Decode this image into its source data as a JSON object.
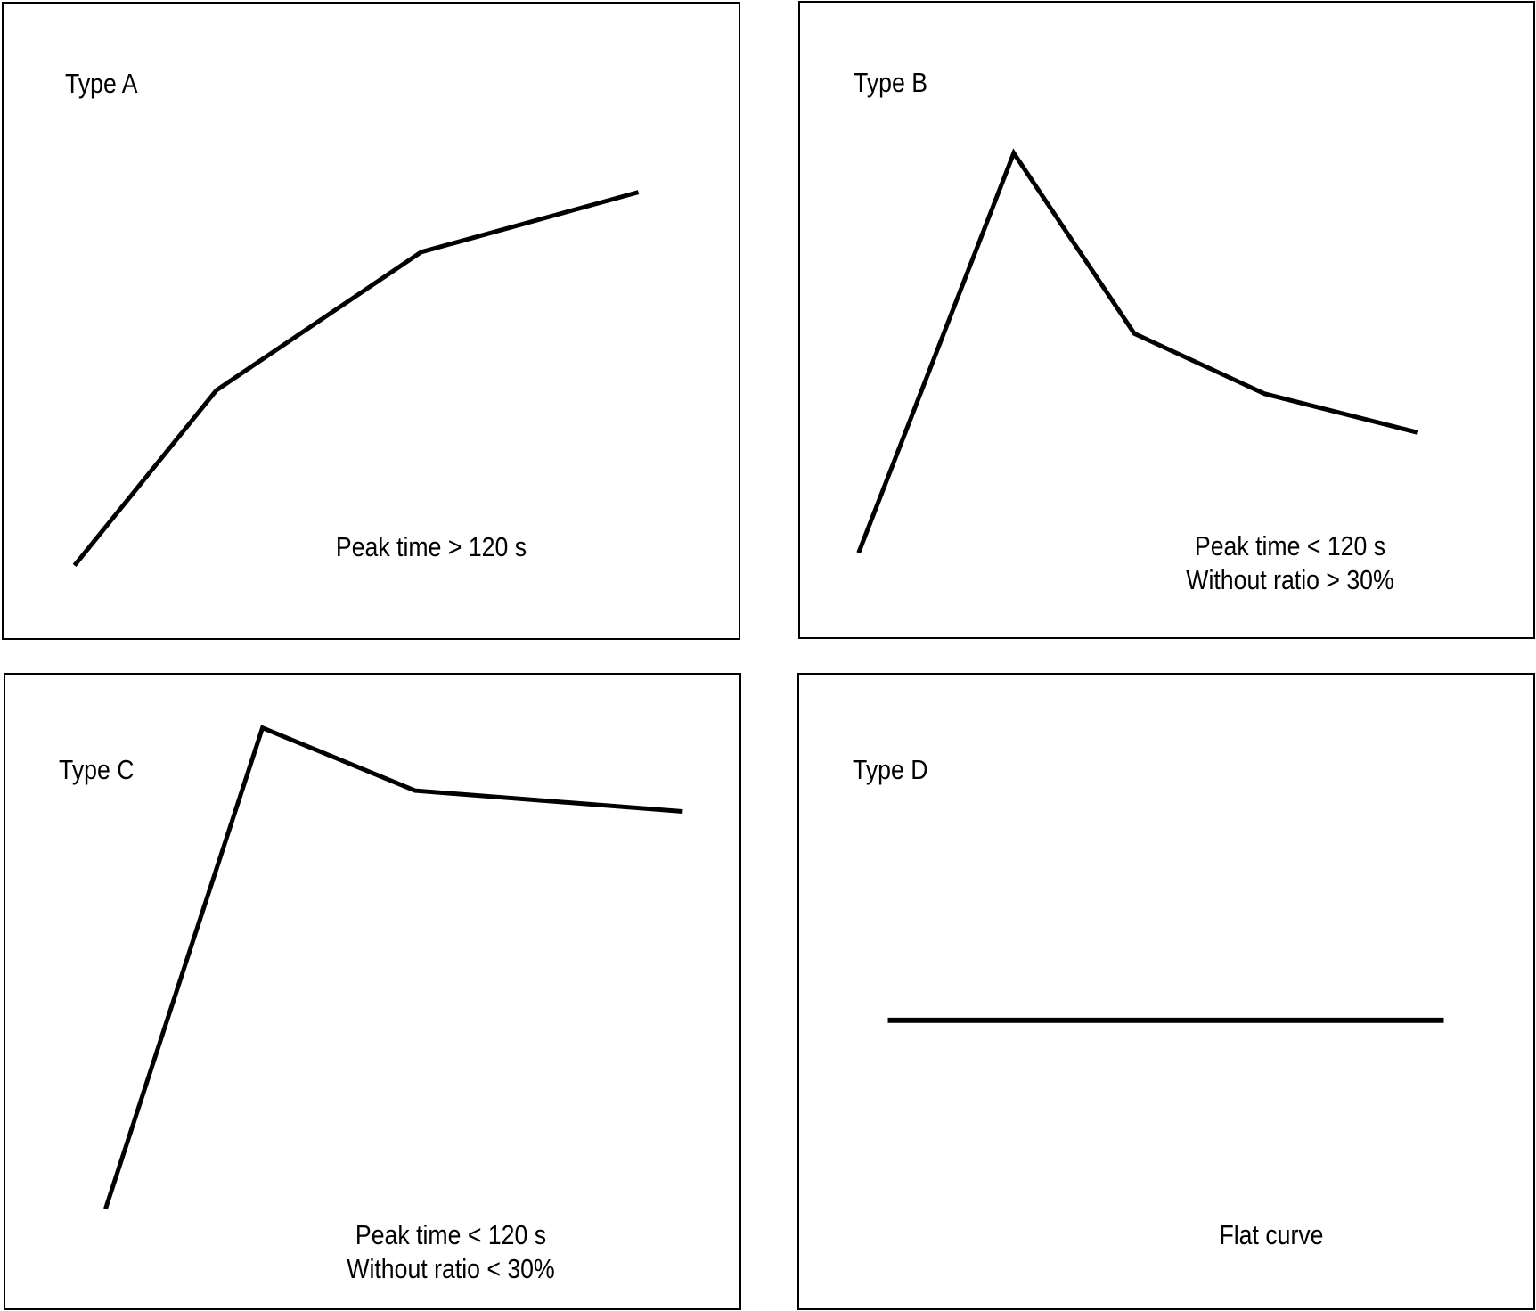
{
  "chart_data": [
    {
      "type": "line",
      "title": "Type A",
      "annotation": [
        "Peak time > 120 s"
      ],
      "x": [
        0,
        1,
        2,
        3
      ],
      "values": [
        0.05,
        0.43,
        0.73,
        0.86
      ],
      "ylim": [
        0,
        1
      ],
      "grid": false,
      "stroke": "#000000"
    },
    {
      "type": "line",
      "title": "Type B",
      "annotation": [
        "Peak time < 120 s",
        "Without ratio > 30%"
      ],
      "x": [
        0,
        1,
        2,
        3,
        4
      ],
      "values": [
        0.05,
        0.98,
        0.56,
        0.42,
        0.33
      ],
      "ylim": [
        0,
        1
      ],
      "grid": false,
      "stroke": "#000000"
    },
    {
      "type": "line",
      "title": "Type C",
      "annotation": [
        "Peak time < 120 s",
        "Without ratio < 30%"
      ],
      "x": [
        0,
        1,
        2,
        3
      ],
      "values": [
        0.08,
        1.0,
        0.88,
        0.84
      ],
      "ylim": [
        0,
        1
      ],
      "grid": false,
      "stroke": "#000000"
    },
    {
      "type": "line",
      "title": "Type D",
      "annotation": [
        "Flat curve"
      ],
      "x": [
        0,
        1
      ],
      "values": [
        0.4,
        0.4
      ],
      "ylim": [
        0,
        1
      ],
      "grid": false,
      "stroke": "#000000"
    }
  ]
}
